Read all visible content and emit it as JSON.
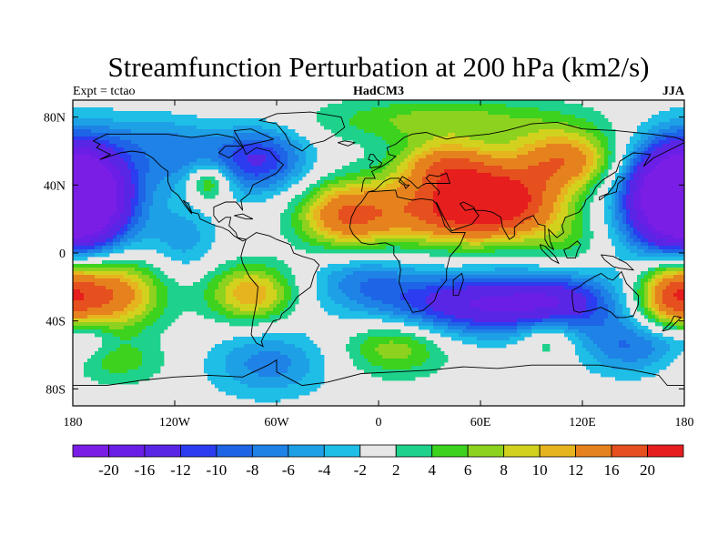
{
  "chart_data": {
    "type": "contour-map",
    "title": "Streamfunction Perturbation at 200 hPa (km2/s)",
    "left_label": "Expt = tctao",
    "center_label": "HadCM3",
    "right_label": "JJA",
    "xlim": [
      -180,
      180
    ],
    "ylim": [
      -90,
      90
    ],
    "x_ticks": [
      {
        "value": -180,
        "label": "180"
      },
      {
        "value": -120,
        "label": "120W"
      },
      {
        "value": -60,
        "label": "60W"
      },
      {
        "value": 0,
        "label": "0"
      },
      {
        "value": 60,
        "label": "60E"
      },
      {
        "value": 120,
        "label": "120E"
      },
      {
        "value": 180,
        "label": "180"
      }
    ],
    "y_ticks": [
      {
        "value": 80,
        "label": "80N"
      },
      {
        "value": 40,
        "label": "40N"
      },
      {
        "value": 0,
        "label": "0"
      },
      {
        "value": -40,
        "label": "40S"
      },
      {
        "value": -80,
        "label": "80S"
      }
    ],
    "colorbar": {
      "colors": [
        "#7a1ee6",
        "#6a1ee6",
        "#5a26e6",
        "#2c3cf0",
        "#1e64e6",
        "#1e82e6",
        "#1ea0e6",
        "#1ebee6",
        "#e6e6e6",
        "#1ed28c",
        "#3cd21e",
        "#8cd21e",
        "#d2d21e",
        "#e6b41e",
        "#e6821e",
        "#e6501e",
        "#e61e1e"
      ],
      "boundaries": [
        "-20",
        "-16",
        "-12",
        "-10",
        "-8",
        "-6",
        "-4",
        "-2",
        "2",
        "4",
        "6",
        "8",
        "10",
        "12",
        "16",
        "20"
      ],
      "levels": [
        -20,
        -16,
        -12,
        -10,
        -8,
        -6,
        -4,
        -2,
        2,
        4,
        6,
        8,
        10,
        12,
        16,
        20
      ]
    },
    "features": [
      {
        "lon": -175,
        "lat": 33,
        "value": -20,
        "sx": 22,
        "sy": 22
      },
      {
        "lon": 175,
        "lat": 33,
        "value": -20,
        "sx": 22,
        "sy": 22
      },
      {
        "lon": -70,
        "lat": 55,
        "value": -12,
        "sx": 20,
        "sy": 14
      },
      {
        "lon": -115,
        "lat": 55,
        "value": -6,
        "sx": 20,
        "sy": 14
      },
      {
        "lon": -135,
        "lat": 70,
        "value": -3,
        "sx": 20,
        "sy": 10
      },
      {
        "lon": -100,
        "lat": 42,
        "value": 10,
        "sx": 9,
        "sy": 8
      },
      {
        "lon": -115,
        "lat": 8,
        "value": -5,
        "sx": 14,
        "sy": 14
      },
      {
        "lon": -160,
        "lat": -24,
        "value": 16,
        "sx": 22,
        "sy": 15
      },
      {
        "lon": 172,
        "lat": -25,
        "value": 14,
        "sx": 14,
        "sy": 14
      },
      {
        "lon": -75,
        "lat": -24,
        "value": 12,
        "sx": 18,
        "sy": 12
      },
      {
        "lon": -155,
        "lat": -64,
        "value": 5,
        "sx": 22,
        "sy": 10
      },
      {
        "lon": -65,
        "lat": -65,
        "value": -7,
        "sx": 25,
        "sy": 14
      },
      {
        "lon": 60,
        "lat": -30,
        "value": -16,
        "sx": 42,
        "sy": 13
      },
      {
        "lon": 110,
        "lat": -28,
        "value": -8,
        "sx": 22,
        "sy": 13
      },
      {
        "lon": 10,
        "lat": -55,
        "value": 8,
        "sx": 22,
        "sy": 12
      },
      {
        "lon": 100,
        "lat": -50,
        "value": 6,
        "sx": 12,
        "sy": 9
      },
      {
        "lon": 150,
        "lat": -55,
        "value": -8,
        "sx": 22,
        "sy": 12
      },
      {
        "lon": -175,
        "lat": -50,
        "value": -4,
        "sx": 14,
        "sy": 8
      },
      {
        "lon": -20,
        "lat": 22,
        "value": 14,
        "sx": 20,
        "sy": 14
      },
      {
        "lon": 30,
        "lat": 25,
        "value": 12,
        "sx": 30,
        "sy": 15
      },
      {
        "lon": 70,
        "lat": 30,
        "value": 22,
        "sx": 26,
        "sy": 15
      },
      {
        "lon": 40,
        "lat": 52,
        "value": 12,
        "sx": 20,
        "sy": 10
      },
      {
        "lon": 110,
        "lat": 55,
        "value": 14,
        "sx": 22,
        "sy": 12
      },
      {
        "lon": 40,
        "lat": 78,
        "value": 7,
        "sx": 55,
        "sy": 10
      },
      {
        "lon": -10,
        "lat": -15,
        "value": -6,
        "sx": 22,
        "sy": 12
      },
      {
        "lon": 110,
        "lat": 5,
        "value": 4,
        "sx": 16,
        "sy": 14
      }
    ]
  }
}
